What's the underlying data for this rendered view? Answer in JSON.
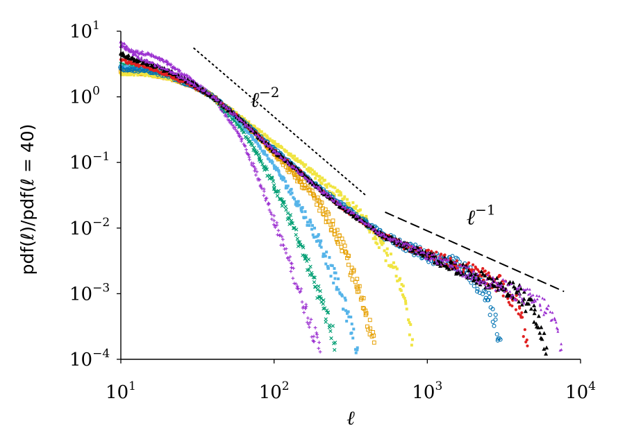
{
  "chart_data": {
    "type": "scatter",
    "x_scale": "log",
    "y_scale": "log",
    "xlim": [
      10,
      10000
    ],
    "ylim": [
      0.0001,
      10
    ],
    "x_ticks": [
      {
        "value": 10,
        "base": "10",
        "exp": "1"
      },
      {
        "value": 100,
        "base": "10",
        "exp": "2"
      },
      {
        "value": 1000,
        "base": "10",
        "exp": "3"
      },
      {
        "value": 10000,
        "base": "10",
        "exp": "4"
      }
    ],
    "y_ticks": [
      {
        "value": 10,
        "base": "10",
        "exp": "1"
      },
      {
        "value": 1,
        "base": "10",
        "exp": "0"
      },
      {
        "value": 0.1,
        "base": "10",
        "exp": "−1"
      },
      {
        "value": 0.01,
        "base": "10",
        "exp": "−2"
      },
      {
        "value": 0.001,
        "base": "10",
        "exp": "−3"
      },
      {
        "value": 0.0001,
        "base": "10",
        "exp": "−4"
      }
    ],
    "xlabel": "ℓ",
    "ylabel": "pdf(ℓ)/pdf(ℓ = 40)",
    "grid": false,
    "legend": "none",
    "series": [
      {
        "color": "#9b30d0",
        "marker": "plus",
        "x": [
          10,
          12,
          15,
          20,
          30,
          40,
          60,
          80,
          100,
          130,
          160,
          200
        ],
        "y": [
          5.8,
          4.9,
          4.5,
          3.3,
          1.7,
          1.0,
          0.25,
          0.055,
          0.013,
          0.0025,
          0.0006,
          0.00013
        ]
      },
      {
        "color": "#009e73",
        "marker": "x",
        "x": [
          10,
          12,
          15,
          20,
          30,
          40,
          60,
          80,
          100,
          130,
          160,
          200,
          250
        ],
        "y": [
          3.2,
          2.8,
          2.6,
          2.2,
          1.5,
          1.0,
          0.35,
          0.12,
          0.045,
          0.012,
          0.0035,
          0.0009,
          0.00018
        ]
      },
      {
        "color": "#56b4e9",
        "marker": "square-small",
        "x": [
          10,
          12,
          15,
          20,
          30,
          40,
          60,
          100,
          150,
          200,
          250,
          300,
          350
        ],
        "y": [
          2.9,
          2.7,
          2.5,
          2.1,
          1.45,
          1.0,
          0.42,
          0.09,
          0.02,
          0.006,
          0.0017,
          0.0005,
          0.00015
        ]
      },
      {
        "color": "#e69f00",
        "marker": "square-open",
        "x": [
          10,
          12,
          15,
          20,
          30,
          40,
          60,
          100,
          150,
          200,
          250,
          300,
          350,
          400,
          450
        ],
        "y": [
          2.4,
          2.35,
          2.3,
          2.0,
          1.45,
          1.0,
          0.47,
          0.14,
          0.05,
          0.022,
          0.009,
          0.0035,
          0.0012,
          0.0005,
          0.00018
        ]
      },
      {
        "color": "#f0e442",
        "marker": "square-small",
        "x": [
          10,
          12,
          15,
          20,
          30,
          40,
          60,
          100,
          150,
          200,
          300,
          400,
          500,
          600,
          700,
          800
        ],
        "y": [
          2.3,
          2.25,
          2.2,
          1.95,
          1.45,
          1.0,
          0.5,
          0.2,
          0.1,
          0.055,
          0.024,
          0.013,
          0.006,
          0.0025,
          0.0009,
          0.0002
        ]
      },
      {
        "color": "#0072b2",
        "marker": "circle-open",
        "x": [
          10,
          12,
          15,
          20,
          30,
          40,
          60,
          100,
          150,
          200,
          300,
          400,
          500,
          700,
          1000,
          1500,
          2000,
          2500,
          3000
        ],
        "y": [
          2.7,
          2.6,
          2.5,
          2.1,
          1.45,
          1.0,
          0.46,
          0.16,
          0.07,
          0.04,
          0.02,
          0.012,
          0.008,
          0.0055,
          0.0038,
          0.0028,
          0.0018,
          0.0008,
          0.0002
        ]
      },
      {
        "color": "#e02020",
        "marker": "dot",
        "x": [
          10,
          12,
          15,
          20,
          30,
          40,
          60,
          100,
          150,
          200,
          300,
          500,
          700,
          1000,
          1500,
          2000,
          3000,
          4000,
          4500
        ],
        "y": [
          3.7,
          3.2,
          2.8,
          2.2,
          1.45,
          1.0,
          0.46,
          0.15,
          0.07,
          0.038,
          0.018,
          0.008,
          0.0055,
          0.004,
          0.0028,
          0.0022,
          0.0014,
          0.0006,
          0.00016
        ]
      },
      {
        "color": "#000000",
        "marker": "triangle",
        "x": [
          10,
          12,
          15,
          20,
          30,
          40,
          60,
          100,
          150,
          200,
          300,
          500,
          1000,
          2000,
          3000,
          4000,
          5000,
          6000
        ],
        "y": [
          4.6,
          3.8,
          3.2,
          2.5,
          1.55,
          1.0,
          0.45,
          0.15,
          0.07,
          0.038,
          0.018,
          0.008,
          0.0038,
          0.0019,
          0.0013,
          0.001,
          0.0005,
          0.00015
        ]
      },
      {
        "color": "#9b30d0",
        "marker": "triangle-small",
        "x": [
          10,
          12,
          15,
          20,
          30,
          40,
          60,
          100,
          200,
          500,
          1000,
          2000,
          3000,
          4000,
          5000,
          6000,
          7000,
          7500
        ],
        "y": [
          7.0,
          4.5,
          3.4,
          2.6,
          1.55,
          1.0,
          0.45,
          0.15,
          0.038,
          0.008,
          0.0038,
          0.0019,
          0.0013,
          0.001,
          0.0008,
          0.0006,
          0.0003,
          0.00014
        ]
      }
    ],
    "reference_lines": [
      {
        "style": "dotted",
        "slope": -2,
        "x": [
          30,
          400
        ],
        "y": [
          5.5,
          0.031
        ],
        "label_base": "ℓ",
        "label_exp": "−2",
        "label_x": 70,
        "label_y": 0.9
      },
      {
        "style": "dashed",
        "slope": -1,
        "x": [
          530,
          7800
        ],
        "y": [
          0.0175,
          0.00108
        ],
        "label_base": "ℓ",
        "label_exp": "−1",
        "label_x": 1800,
        "label_y": 0.0145
      }
    ]
  }
}
